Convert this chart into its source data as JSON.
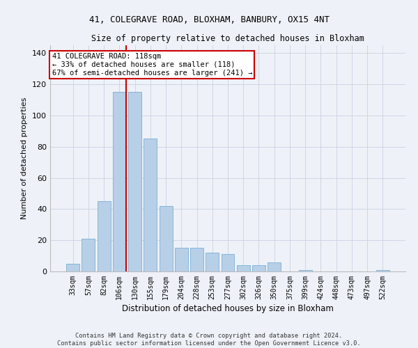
{
  "title_line1": "41, COLEGRAVE ROAD, BLOXHAM, BANBURY, OX15 4NT",
  "title_line2": "Size of property relative to detached houses in Bloxham",
  "xlabel": "Distribution of detached houses by size in Bloxham",
  "ylabel": "Number of detached properties",
  "categories": [
    "33sqm",
    "57sqm",
    "82sqm",
    "106sqm",
    "130sqm",
    "155sqm",
    "179sqm",
    "204sqm",
    "228sqm",
    "253sqm",
    "277sqm",
    "302sqm",
    "326sqm",
    "350sqm",
    "375sqm",
    "399sqm",
    "424sqm",
    "448sqm",
    "473sqm",
    "497sqm",
    "522sqm"
  ],
  "values": [
    5,
    21,
    45,
    115,
    115,
    85,
    42,
    15,
    15,
    12,
    11,
    4,
    4,
    6,
    0,
    1,
    0,
    0,
    0,
    0,
    1
  ],
  "bar_color": "#b8cfe8",
  "bar_edge_color": "#7aafd4",
  "redline_label": "41 COLEGRAVE ROAD: 118sqm",
  "annotation_line1": "← 33% of detached houses are smaller (118)",
  "annotation_line2": "67% of semi-detached houses are larger (241) →",
  "annotation_box_color": "#ffffff",
  "annotation_box_edge": "#cc0000",
  "redline_color": "#cc0000",
  "grid_color": "#cdd5e5",
  "background_color": "#eef2f8",
  "ylim": [
    0,
    145
  ],
  "yticks": [
    0,
    20,
    40,
    60,
    80,
    100,
    120,
    140
  ],
  "footer_line1": "Contains HM Land Registry data © Crown copyright and database right 2024.",
  "footer_line2": "Contains public sector information licensed under the Open Government Licence v3.0."
}
